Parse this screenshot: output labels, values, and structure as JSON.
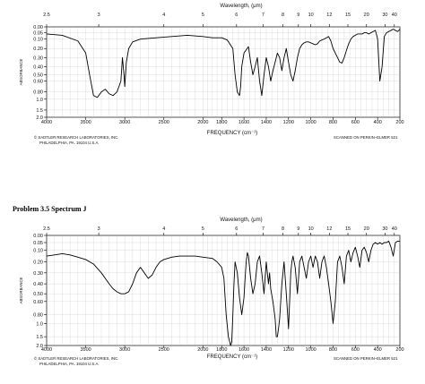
{
  "chart_data": [
    {
      "type": "line",
      "title": "",
      "xlabel": "FREQUENCY (cm⁻¹)",
      "ylabel": "ABSORBANCE",
      "top_axis_label": "Wavelength, (μm)",
      "x_ticks": [
        "4000",
        "3500",
        "3000",
        "2500",
        "2000",
        "1800",
        "1600",
        "1400",
        "1200",
        "1000",
        "800",
        "600",
        "400",
        "200"
      ],
      "y_ticks": [
        "0.00",
        "0.05",
        "0.10",
        "0.20",
        "0.30",
        "0.40",
        "0.50",
        "0.60",
        "0.80",
        "1.0",
        "1.5",
        "2.0"
      ],
      "wl_ticks": [
        "2.5",
        "3",
        "4",
        "5",
        "6",
        "7",
        "8",
        "9",
        "10",
        "12",
        "15",
        "20",
        "30",
        "40"
      ],
      "credit_left": [
        "© SADTLER RESEARCH LABORATORIES, INC.",
        "PHILADELPHIA, PA.   19104      U.S.A."
      ],
      "credit_right": "SCANNED ON PERKIN–ELMER   521",
      "x": [
        4000,
        3800,
        3600,
        3500,
        3450,
        3400,
        3350,
        3300,
        3250,
        3200,
        3150,
        3100,
        3050,
        3030,
        3010,
        3000,
        2980,
        2950,
        2900,
        2800,
        2600,
        2400,
        2200,
        2000,
        1900,
        1800,
        1750,
        1700,
        1680,
        1660,
        1650,
        1640,
        1630,
        1620,
        1600,
        1560,
        1540,
        1520,
        1500,
        1480,
        1460,
        1440,
        1420,
        1400,
        1380,
        1360,
        1340,
        1320,
        1300,
        1280,
        1260,
        1240,
        1220,
        1200,
        1180,
        1160,
        1140,
        1120,
        1100,
        1080,
        1060,
        1040,
        1020,
        1000,
        980,
        960,
        940,
        920,
        900,
        880,
        860,
        840,
        820,
        800,
        780,
        760,
        740,
        720,
        700,
        680,
        660,
        640,
        620,
        600,
        580,
        560,
        540,
        520,
        500,
        480,
        460,
        440,
        420,
        400,
        380,
        360,
        340,
        320,
        300,
        280,
        260,
        240,
        220,
        200
      ],
      "y": [
        0.06,
        0.07,
        0.12,
        0.25,
        0.5,
        0.9,
        0.95,
        0.8,
        0.75,
        0.85,
        0.9,
        0.8,
        0.6,
        0.3,
        0.5,
        0.7,
        0.35,
        0.2,
        0.13,
        0.1,
        0.09,
        0.08,
        0.07,
        0.08,
        0.09,
        0.09,
        0.11,
        0.2,
        0.5,
        0.8,
        0.85,
        0.9,
        0.7,
        0.4,
        0.25,
        0.18,
        0.35,
        0.5,
        0.4,
        0.3,
        0.6,
        0.9,
        0.5,
        0.3,
        0.4,
        0.6,
        0.45,
        0.35,
        0.25,
        0.3,
        0.45,
        0.3,
        0.2,
        0.35,
        0.5,
        0.6,
        0.45,
        0.3,
        0.2,
        0.16,
        0.14,
        0.13,
        0.13,
        0.14,
        0.15,
        0.16,
        0.15,
        0.12,
        0.11,
        0.1,
        0.09,
        0.08,
        0.12,
        0.2,
        0.25,
        0.3,
        0.35,
        0.36,
        0.3,
        0.22,
        0.15,
        0.1,
        0.08,
        0.07,
        0.06,
        0.06,
        0.06,
        0.05,
        0.05,
        0.06,
        0.05,
        0.04,
        0.03,
        0.1,
        0.6,
        0.4,
        0.08,
        0.05,
        0.04,
        0.03,
        0.02,
        0.03,
        0.04,
        0.02
      ]
    },
    {
      "type": "line",
      "title": "Problem 3.5 Spectrum J",
      "xlabel": "FREQUENCY (cm⁻¹)",
      "ylabel": "ABSORBANCE",
      "top_axis_label": "Wavelength, (μm)",
      "x_ticks": [
        "4000",
        "3500",
        "3000",
        "2500",
        "2000",
        "1800",
        "1600",
        "1400",
        "1200",
        "1000",
        "800",
        "600",
        "400",
        "200"
      ],
      "y_ticks": [
        "0.00",
        "0.05",
        "0.10",
        "0.20",
        "0.30",
        "0.40",
        "0.50",
        "0.60",
        "0.80",
        "1.0",
        "1.5",
        "2.0"
      ],
      "wl_ticks": [
        "2.5",
        "3",
        "4",
        "5",
        "6",
        "7",
        "8",
        "9",
        "10",
        "12",
        "15",
        "20",
        "30",
        "40"
      ],
      "credit_left": [
        "© SADTLER RESEARCH LABORATORIES, INC.",
        "PHILADELPHIA, PA.   19104      U.S.A."
      ],
      "credit_right": "SCANNED ON PERKIN–ELMER   521",
      "x": [
        4000,
        3900,
        3800,
        3700,
        3600,
        3500,
        3400,
        3300,
        3200,
        3150,
        3100,
        3050,
        3000,
        2950,
        2900,
        2850,
        2800,
        2750,
        2700,
        2650,
        2600,
        2550,
        2500,
        2400,
        2300,
        2200,
        2100,
        2000,
        1900,
        1850,
        1800,
        1780,
        1760,
        1740,
        1720,
        1710,
        1700,
        1690,
        1680,
        1660,
        1640,
        1620,
        1600,
        1590,
        1580,
        1570,
        1560,
        1540,
        1520,
        1500,
        1480,
        1460,
        1440,
        1420,
        1400,
        1380,
        1370,
        1360,
        1340,
        1320,
        1310,
        1300,
        1290,
        1280,
        1260,
        1240,
        1220,
        1200,
        1190,
        1180,
        1170,
        1160,
        1140,
        1120,
        1100,
        1080,
        1060,
        1040,
        1020,
        1000,
        980,
        960,
        940,
        920,
        900,
        880,
        860,
        840,
        820,
        800,
        780,
        760,
        740,
        720,
        700,
        680,
        660,
        640,
        620,
        600,
        580,
        560,
        540,
        520,
        500,
        480,
        460,
        440,
        420,
        400,
        380,
        360,
        340,
        320,
        300,
        280,
        260,
        240,
        220,
        200
      ],
      "y": [
        0.15,
        0.14,
        0.13,
        0.14,
        0.16,
        0.18,
        0.22,
        0.3,
        0.4,
        0.45,
        0.48,
        0.5,
        0.5,
        0.48,
        0.4,
        0.3,
        0.25,
        0.3,
        0.35,
        0.32,
        0.25,
        0.2,
        0.18,
        0.16,
        0.15,
        0.15,
        0.15,
        0.16,
        0.17,
        0.2,
        0.25,
        0.35,
        0.8,
        1.5,
        2.0,
        1.8,
        0.8,
        0.4,
        0.2,
        0.3,
        0.55,
        0.8,
        0.55,
        0.35,
        0.2,
        0.12,
        0.15,
        0.35,
        0.5,
        0.4,
        0.2,
        0.15,
        0.3,
        0.5,
        0.2,
        0.4,
        0.3,
        0.45,
        0.6,
        0.9,
        1.5,
        1.5,
        1.2,
        0.9,
        0.4,
        0.2,
        0.5,
        1.2,
        0.6,
        0.3,
        0.2,
        0.15,
        0.25,
        0.5,
        0.2,
        0.15,
        0.25,
        0.35,
        0.2,
        0.15,
        0.25,
        0.15,
        0.2,
        0.35,
        0.2,
        0.15,
        0.25,
        0.4,
        0.6,
        1.0,
        0.6,
        0.2,
        0.15,
        0.25,
        0.4,
        0.15,
        0.1,
        0.2,
        0.12,
        0.08,
        0.15,
        0.25,
        0.1,
        0.08,
        0.12,
        0.2,
        0.1,
        0.06,
        0.05,
        0.06,
        0.05,
        0.06,
        0.05,
        0.05,
        0.04,
        0.08,
        0.15,
        0.05,
        0.04,
        0.04
      ]
    }
  ]
}
